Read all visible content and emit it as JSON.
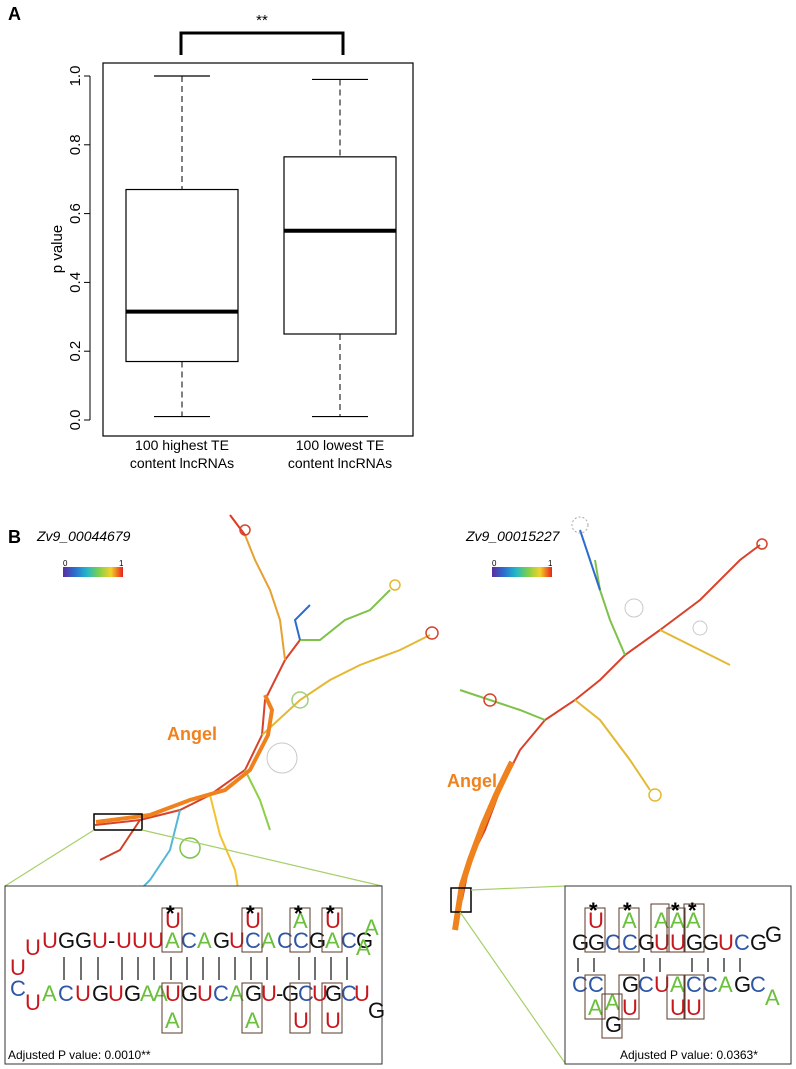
{
  "panel_a_label": "A",
  "panel_b_label": "B",
  "significance": "**",
  "chart_data": {
    "type": "box",
    "title": "",
    "ylabel": "p value",
    "xlabel": "",
    "ylim": [
      0,
      1.0
    ],
    "yticks": [
      "0.0",
      "0.2",
      "0.4",
      "0.6",
      "0.8",
      "1.0"
    ],
    "categories": [
      {
        "line1": "100 highest TE",
        "line2": "content lncRNAs"
      },
      {
        "line1": "100 lowest TE",
        "line2": "content lncRNAs"
      }
    ],
    "boxes": [
      {
        "min": 0.01,
        "q1": 0.17,
        "median": 0.315,
        "q3": 0.67,
        "max": 1.0
      },
      {
        "min": 0.01,
        "q1": 0.25,
        "median": 0.55,
        "q3": 0.765,
        "max": 0.99
      }
    ]
  },
  "structures": [
    {
      "gene": "Zv9_00044679",
      "scale_min": "0",
      "scale_max": "1",
      "label": "Angel"
    },
    {
      "gene": "Zv9_00015227",
      "scale_min": "0",
      "scale_max": "1",
      "label": "Angel"
    }
  ],
  "insets": [
    {
      "pvalue": "Adjusted P value: 0.0010**"
    },
    {
      "pvalue": "Adjusted P value: 0.0363*"
    }
  ],
  "colors": {
    "U": "#c8161d",
    "A": "#6abf3c",
    "C": "#2e56a6",
    "G": "#111111",
    "angel": "#f0821e",
    "inset_line": "#a6d06a"
  }
}
